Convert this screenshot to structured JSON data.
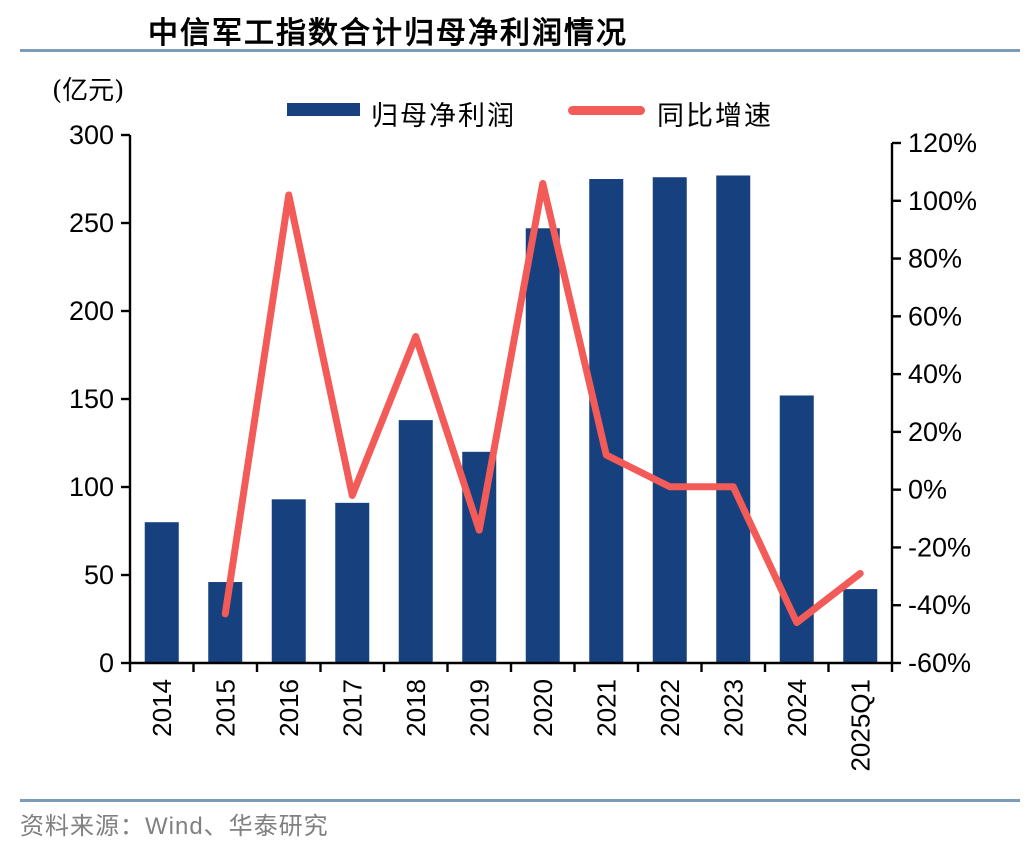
{
  "header": {
    "title": "中信军工指数合计归母净利润情况"
  },
  "footer": {
    "source": "资料来源：Wind、华泰研究"
  },
  "legend": {
    "bar_label": "归母净利润",
    "line_label": "同比增速"
  },
  "axes": {
    "left_unit": "(亿元)",
    "left_ticks": [
      "300",
      "250",
      "200",
      "150",
      "100",
      "50",
      "0"
    ],
    "right_ticks": [
      "120%",
      "100%",
      "80%",
      "60%",
      "40%",
      "20%",
      "0%",
      "-20%",
      "-40%",
      "-60%"
    ]
  },
  "colors": {
    "bar": "#16417e",
    "line": "#f25b57",
    "rule": "#7b9cba",
    "axis": "#000000",
    "source_text": "#808080"
  },
  "chart_data": {
    "type": "bar",
    "subtype": "bar+line combo, dual axis",
    "title": "中信军工指数合计归母净利润情况",
    "categories": [
      "2014",
      "2015",
      "2016",
      "2017",
      "2018",
      "2019",
      "2020",
      "2021",
      "2022",
      "2023",
      "2024",
      "2025Q1"
    ],
    "series": [
      {
        "name": "归母净利润",
        "type": "bar",
        "axis": "left",
        "unit": "亿元",
        "color": "#16417e",
        "values": [
          80,
          46,
          93,
          91,
          138,
          120,
          247,
          275,
          276,
          277,
          152,
          42
        ]
      },
      {
        "name": "同比增速",
        "type": "line",
        "axis": "right",
        "unit": "%",
        "color": "#f25b57",
        "values": [
          null,
          -43,
          102,
          -2,
          53,
          -14,
          106,
          12,
          1,
          1,
          -46,
          -29
        ]
      }
    ],
    "left_axis": {
      "label": "(亿元)",
      "min": 0,
      "max": 300,
      "tick_step": 50
    },
    "right_axis": {
      "label": "%",
      "min": -60,
      "max": 120,
      "tick_step": 20
    },
    "grid": false,
    "legend_position": "top-center"
  }
}
